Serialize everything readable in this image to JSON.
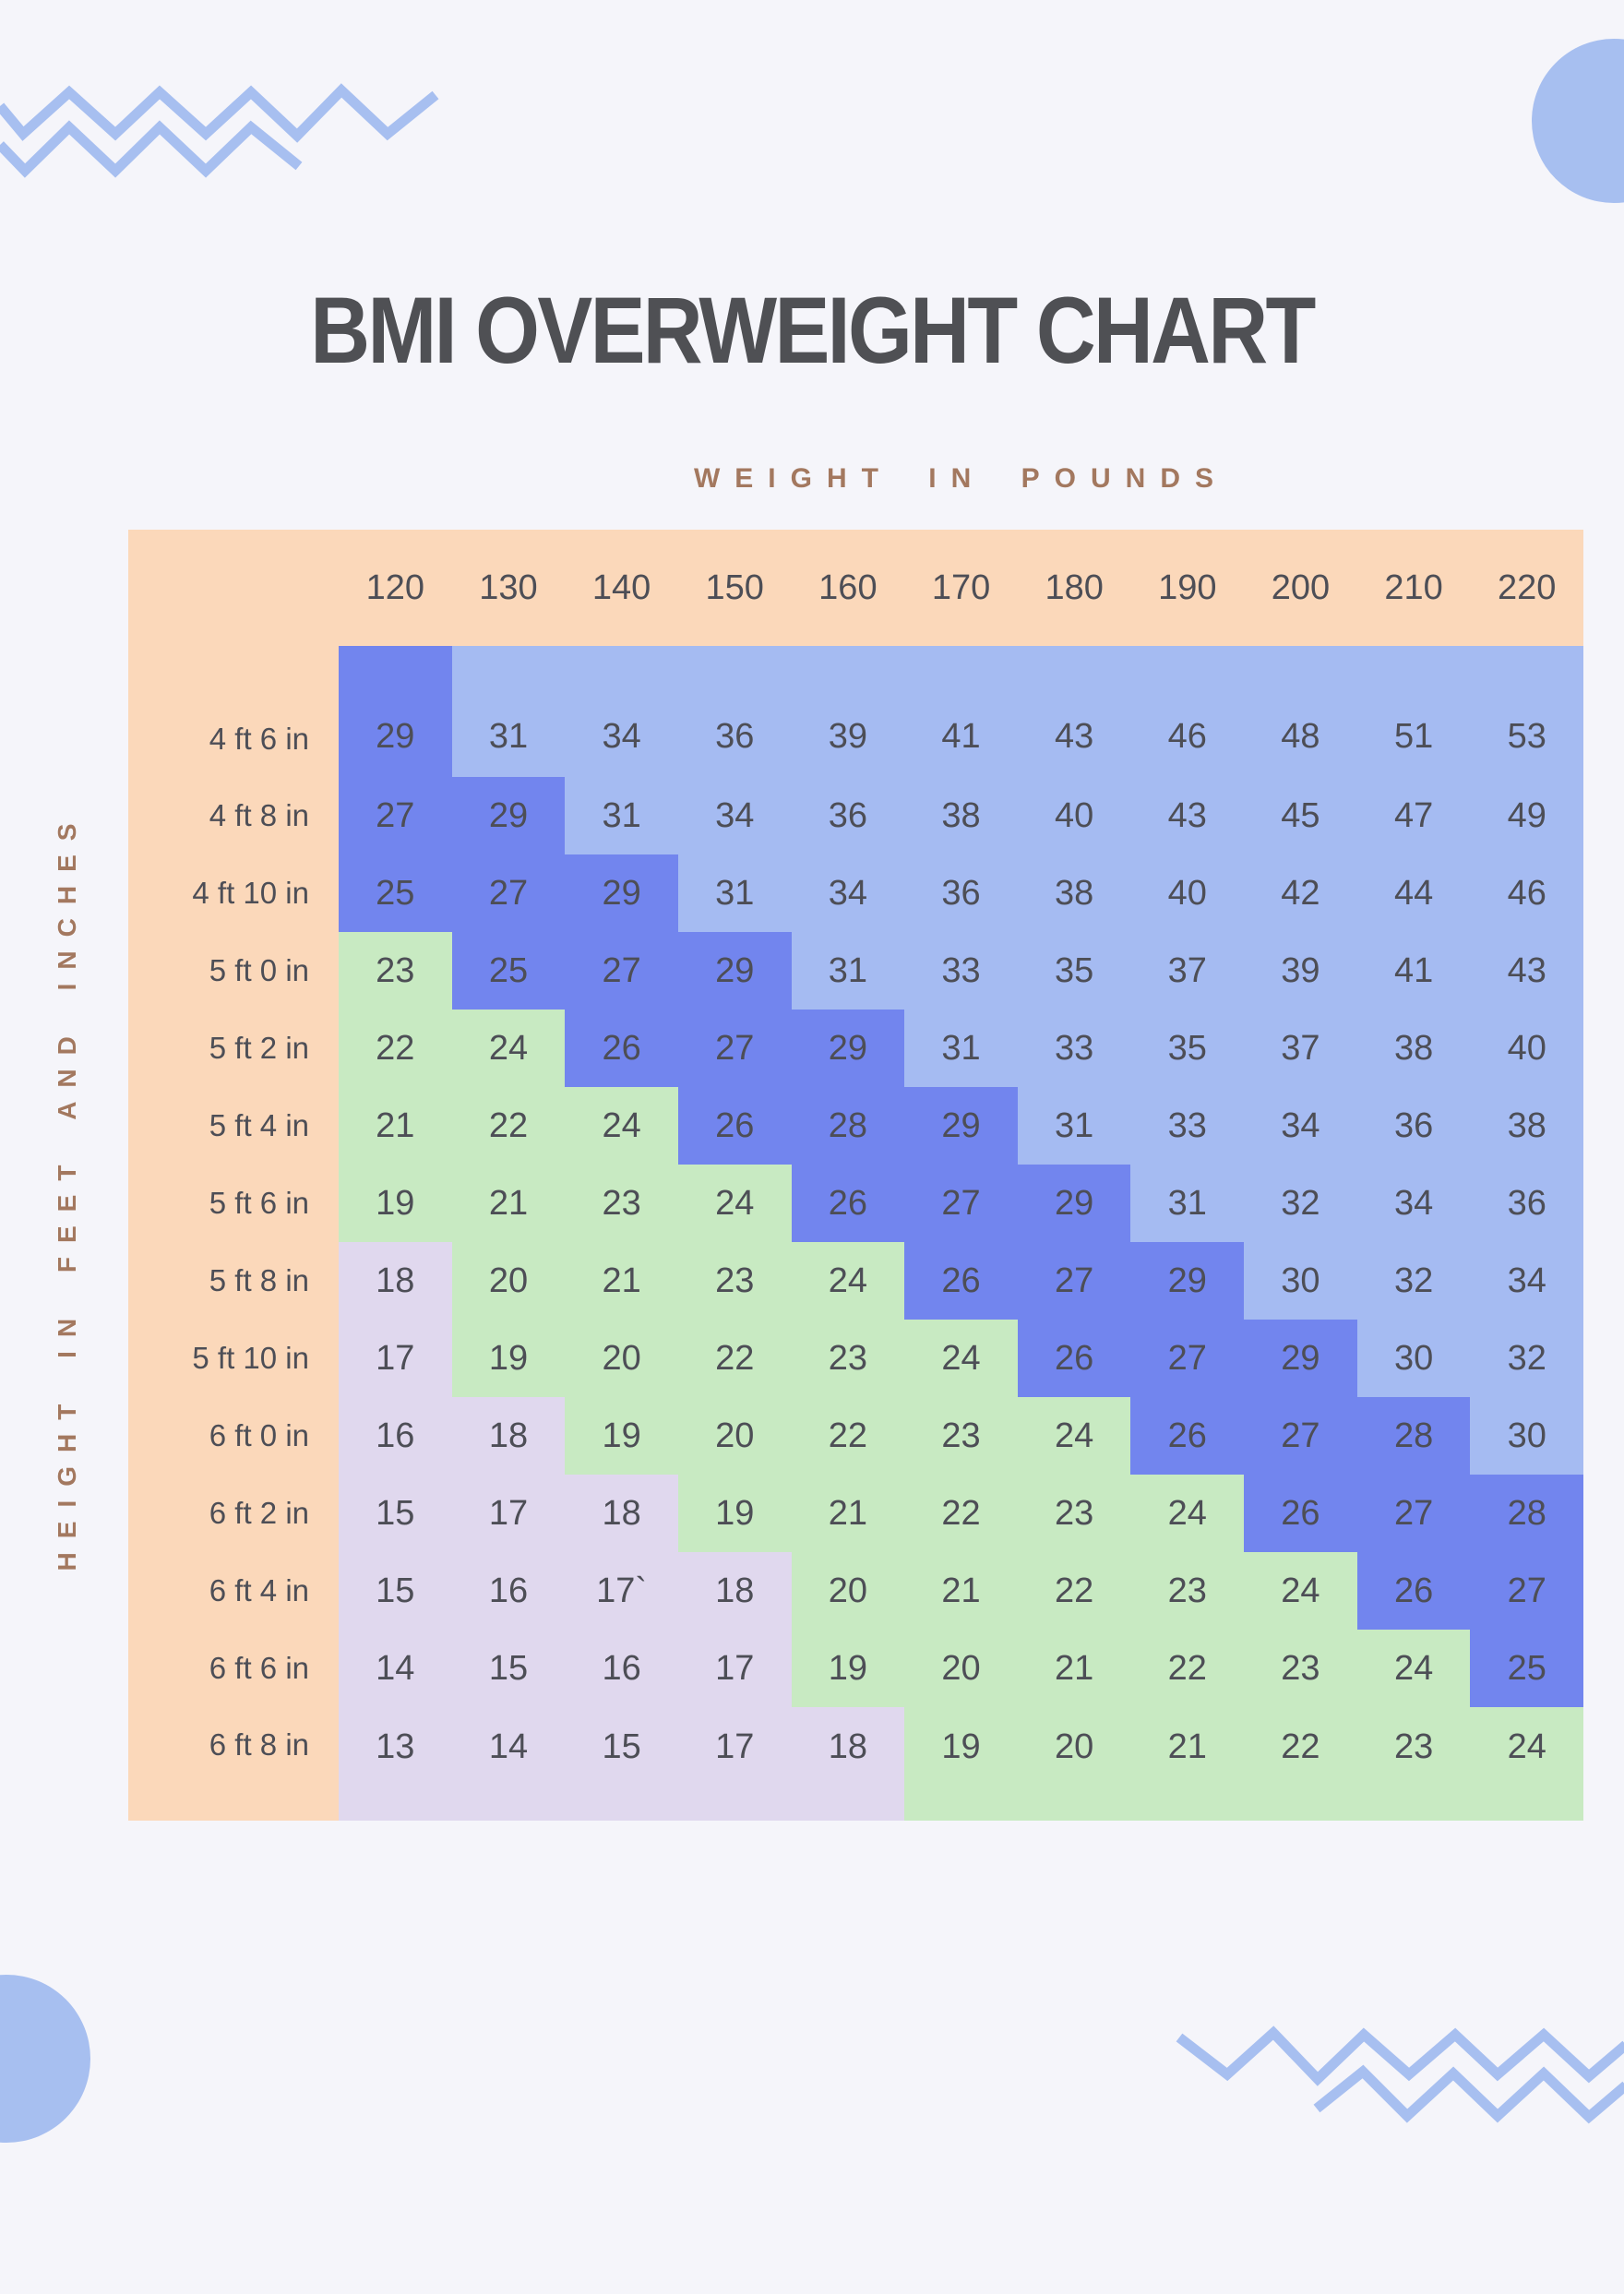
{
  "page": {
    "title": "BMI OVERWEIGHT CHART",
    "x_axis_label": "WEIGHT IN POUNDS",
    "y_axis_label": "HEIGHT IN FEET AND INCHES"
  },
  "chart_data": {
    "type": "heatmap",
    "x_categories": [
      "120",
      "130",
      "140",
      "150",
      "160",
      "170",
      "180",
      "190",
      "200",
      "210",
      "220"
    ],
    "y_categories": [
      "4 ft 6 in",
      "4 ft 8 in",
      "4 ft 10 in",
      "5 ft 0 in",
      "5 ft 2 in",
      "5 ft 4 in",
      "5 ft 6 in",
      "5 ft 8 in",
      "5 ft 10 in",
      "6 ft 0 in",
      "6 ft 2 in",
      "6 ft 4 in",
      "6 ft 6 in",
      "6 ft 8 in"
    ],
    "values": [
      [
        "29",
        "31",
        "34",
        "36",
        "39",
        "41",
        "43",
        "46",
        "48",
        "51",
        "53"
      ],
      [
        "27",
        "29",
        "31",
        "34",
        "36",
        "38",
        "40",
        "43",
        "45",
        "47",
        "49"
      ],
      [
        "25",
        "27",
        "29",
        "31",
        "34",
        "36",
        "38",
        "40",
        "42",
        "44",
        "46"
      ],
      [
        "23",
        "25",
        "27",
        "29",
        "31",
        "33",
        "35",
        "37",
        "39",
        "41",
        "43"
      ],
      [
        "22",
        "24",
        "26",
        "27",
        "29",
        "31",
        "33",
        "35",
        "37",
        "38",
        "40"
      ],
      [
        "21",
        "22",
        "24",
        "26",
        "28",
        "29",
        "31",
        "33",
        "34",
        "36",
        "38"
      ],
      [
        "19",
        "21",
        "23",
        "24",
        "26",
        "27",
        "29",
        "31",
        "32",
        "34",
        "36"
      ],
      [
        "18",
        "20",
        "21",
        "23",
        "24",
        "26",
        "27",
        "29",
        "30",
        "32",
        "34"
      ],
      [
        "17",
        "19",
        "20",
        "22",
        "23",
        "24",
        "26",
        "27",
        "29",
        "30",
        "32"
      ],
      [
        "16",
        "18",
        "19",
        "20",
        "22",
        "23",
        "24",
        "26",
        "27",
        "28",
        "30"
      ],
      [
        "15",
        "17",
        "18",
        "19",
        "21",
        "22",
        "23",
        "24",
        "26",
        "27",
        "28"
      ],
      [
        "15",
        "16",
        "17`",
        "18",
        "20",
        "21",
        "22",
        "23",
        "24",
        "26",
        "27"
      ],
      [
        "14",
        "15",
        "16",
        "17",
        "19",
        "20",
        "21",
        "22",
        "23",
        "24",
        "25"
      ],
      [
        "13",
        "14",
        "15",
        "17",
        "18",
        "19",
        "20",
        "21",
        "22",
        "23",
        "24"
      ]
    ],
    "color_rules": {
      "underweight_max": 18,
      "normal_max": 24,
      "overweight_max": 29
    }
  },
  "colors": {
    "background": "#f5f5fa",
    "header_bg": "#fbd8ba",
    "underweight": "#e0d8ee",
    "normal": "#c8eac2",
    "overweight": "#7285ee",
    "obese": "#a5bbf2",
    "title_text": "#4f5054",
    "axis_label_text": "#a3785f",
    "cell_text": "#4d4e56",
    "decoration_blue": "#a7bff0"
  }
}
